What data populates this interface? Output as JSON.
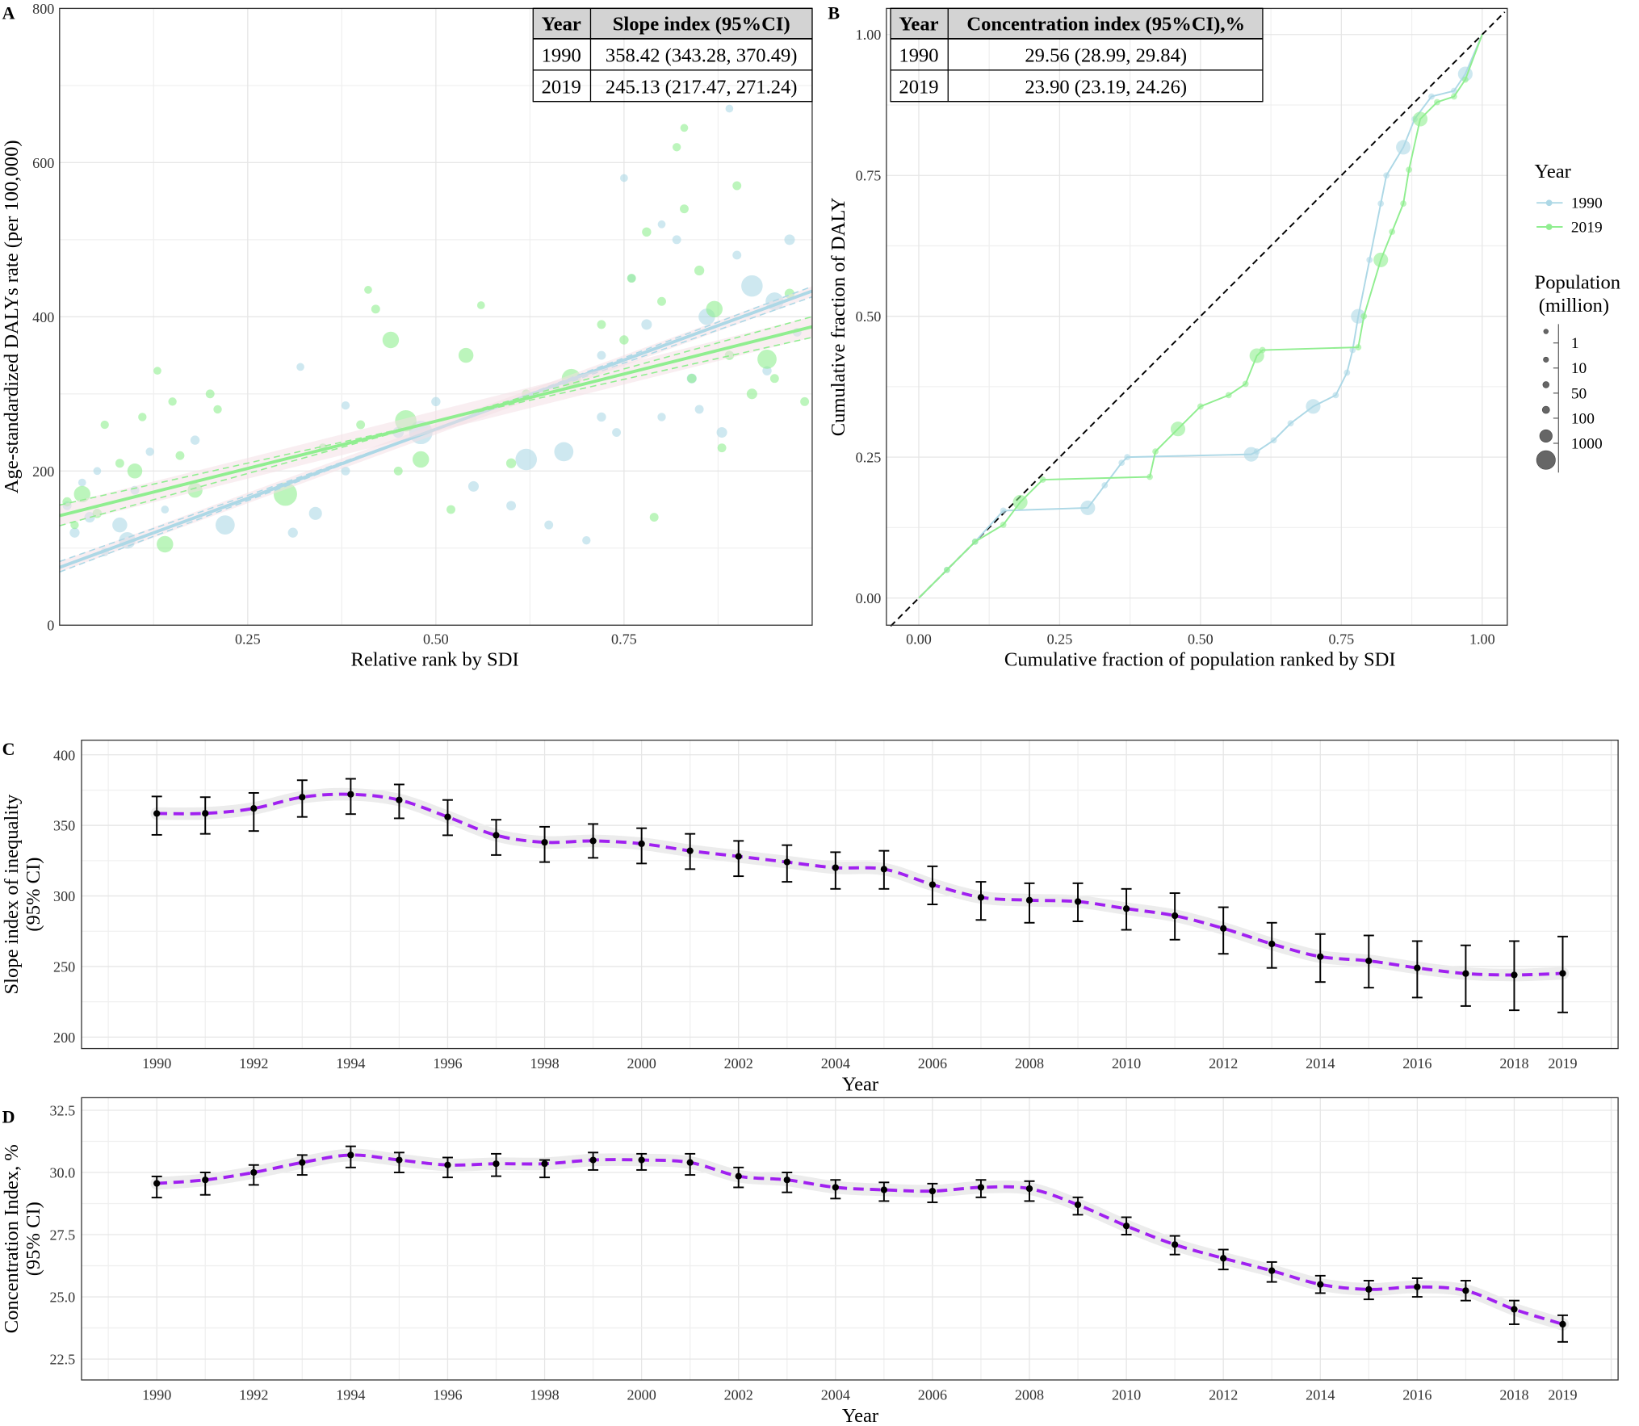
{
  "chart_data": [
    {
      "panel": "A",
      "type": "scatter",
      "xlabel": "Relative rank by SDI",
      "ylabel": "Age-standardized DALYs rate (per 100,000)",
      "xlim": [
        0,
        1
      ],
      "ylim": [
        0,
        800
      ],
      "xticks": [
        "0.25",
        "0.50",
        "0.75"
      ],
      "xtick_values": [
        0.25,
        0.5,
        0.75
      ],
      "yticks": [
        "0",
        "200",
        "400",
        "600",
        "800"
      ],
      "ytick_values": [
        0,
        200,
        400,
        600,
        800
      ],
      "grid": true,
      "table": {
        "headers": [
          "Year",
          "Slope index (95%CI)"
        ],
        "rows": [
          [
            "1990",
            "358.42 (343.28, 370.49)"
          ],
          [
            "2019",
            "245.13 (217.47, 271.24)"
          ]
        ]
      },
      "series": [
        {
          "name": "1990",
          "color": "#add8e6",
          "fit_intercept": 75,
          "fit_slope": 358.42,
          "ci_low_slope": 343.28,
          "ci_high_slope": 370.49,
          "points": [
            [
              0.01,
              155,
              5
            ],
            [
              0.02,
              120,
              8
            ],
            [
              0.03,
              185,
              3
            ],
            [
              0.04,
              140,
              10
            ],
            [
              0.05,
              200,
              3
            ],
            [
              0.06,
              95,
              4
            ],
            [
              0.08,
              130,
              30
            ],
            [
              0.09,
              110,
              40
            ],
            [
              0.1,
              175,
              5
            ],
            [
              0.12,
              225,
              4
            ],
            [
              0.14,
              150,
              3
            ],
            [
              0.18,
              240,
              6
            ],
            [
              0.22,
              130,
              60
            ],
            [
              0.31,
              120,
              8
            ],
            [
              0.32,
              335,
              3
            ],
            [
              0.34,
              145,
              20
            ],
            [
              0.38,
              200,
              5
            ],
            [
              0.38,
              285,
              4
            ],
            [
              0.45,
              250,
              12
            ],
            [
              0.48,
              250,
              100
            ],
            [
              0.5,
              290,
              6
            ],
            [
              0.55,
              180,
              10
            ],
            [
              0.6,
              155,
              7
            ],
            [
              0.62,
              215,
              80
            ],
            [
              0.65,
              130,
              5
            ],
            [
              0.67,
              225,
              60
            ],
            [
              0.7,
              110,
              4
            ],
            [
              0.72,
              270,
              6
            ],
            [
              0.74,
              250,
              5
            ],
            [
              0.75,
              580,
              3
            ],
            [
              0.76,
              450,
              4
            ],
            [
              0.78,
              390,
              10
            ],
            [
              0.8,
              520,
              3
            ],
            [
              0.82,
              500,
              5
            ],
            [
              0.84,
              320,
              8
            ],
            [
              0.86,
              400,
              40
            ],
            [
              0.88,
              250,
              10
            ],
            [
              0.9,
              480,
              5
            ],
            [
              0.92,
              440,
              80
            ],
            [
              0.94,
              330,
              6
            ],
            [
              0.95,
              420,
              50
            ],
            [
              0.97,
              500,
              10
            ],
            [
              0.98,
              380,
              5
            ],
            [
              0.8,
              270,
              4
            ],
            [
              0.85,
              280,
              5
            ],
            [
              0.72,
              350,
              5
            ],
            [
              0.89,
              670,
              3
            ]
          ]
        },
        {
          "name": "2019",
          "color": "#90ee90",
          "fit_intercept": 142,
          "fit_slope": 245.13,
          "ci_low_slope": 217.47,
          "ci_high_slope": 271.24,
          "points": [
            [
              0.01,
              160,
              6
            ],
            [
              0.02,
              130,
              4
            ],
            [
              0.03,
              170,
              40
            ],
            [
              0.05,
              145,
              6
            ],
            [
              0.06,
              260,
              4
            ],
            [
              0.08,
              210,
              5
            ],
            [
              0.1,
              200,
              30
            ],
            [
              0.11,
              270,
              4
            ],
            [
              0.13,
              330,
              3
            ],
            [
              0.14,
              105,
              40
            ],
            [
              0.15,
              290,
              4
            ],
            [
              0.16,
              220,
              5
            ],
            [
              0.18,
              175,
              30
            ],
            [
              0.2,
              300,
              5
            ],
            [
              0.21,
              280,
              4
            ],
            [
              0.3,
              170,
              100
            ],
            [
              0.35,
              230,
              5
            ],
            [
              0.4,
              260,
              5
            ],
            [
              0.41,
              435,
              3
            ],
            [
              0.42,
              410,
              5
            ],
            [
              0.44,
              370,
              40
            ],
            [
              0.45,
              200,
              5
            ],
            [
              0.46,
              265,
              80
            ],
            [
              0.48,
              215,
              40
            ],
            [
              0.52,
              150,
              5
            ],
            [
              0.54,
              350,
              30
            ],
            [
              0.56,
              415,
              3
            ],
            [
              0.6,
              210,
              8
            ],
            [
              0.62,
              300,
              5
            ],
            [
              0.68,
              320,
              60
            ],
            [
              0.72,
              390,
              5
            ],
            [
              0.75,
              370,
              6
            ],
            [
              0.76,
              450,
              5
            ],
            [
              0.78,
              510,
              6
            ],
            [
              0.8,
              420,
              5
            ],
            [
              0.82,
              620,
              4
            ],
            [
              0.83,
              540,
              5
            ],
            [
              0.84,
              320,
              6
            ],
            [
              0.85,
              460,
              8
            ],
            [
              0.87,
              410,
              40
            ],
            [
              0.89,
              350,
              6
            ],
            [
              0.9,
              570,
              5
            ],
            [
              0.92,
              300,
              10
            ],
            [
              0.94,
              345,
              60
            ],
            [
              0.95,
              320,
              5
            ],
            [
              0.97,
              430,
              8
            ],
            [
              0.99,
              290,
              5
            ],
            [
              0.79,
              140,
              5
            ],
            [
              0.88,
              230,
              5
            ],
            [
              0.83,
              645,
              3
            ]
          ]
        }
      ]
    },
    {
      "panel": "B",
      "type": "line",
      "xlabel": "Cumulative fraction of population ranked by SDI",
      "ylabel": "Cumulative fraction of DALY",
      "xlim": [
        0,
        1
      ],
      "ylim": [
        0,
        1
      ],
      "xticks": [
        "0.00",
        "0.25",
        "0.50",
        "0.75",
        "1.00"
      ],
      "xtick_values": [
        0,
        0.25,
        0.5,
        0.75,
        1
      ],
      "yticks": [
        "0.00",
        "0.25",
        "0.50",
        "0.75",
        "1.00"
      ],
      "ytick_values": [
        0,
        0.25,
        0.5,
        0.75,
        1
      ],
      "grid": true,
      "table": {
        "headers": [
          "Year",
          "Concentration index (95%CI),%"
        ],
        "rows": [
          [
            "1990",
            "29.56 (28.99, 29.84)"
          ],
          [
            "2019",
            "23.90 (23.19, 24.26)"
          ]
        ]
      },
      "series": [
        {
          "name": "1990",
          "color": "#add8e6",
          "points": [
            [
              0,
              0
            ],
            [
              0.05,
              0.05
            ],
            [
              0.1,
              0.1
            ],
            [
              0.15,
              0.155
            ],
            [
              0.3,
              0.16
            ],
            [
              0.33,
              0.2
            ],
            [
              0.36,
              0.24
            ],
            [
              0.37,
              0.25
            ],
            [
              0.59,
              0.255
            ],
            [
              0.6,
              0.26
            ],
            [
              0.63,
              0.28
            ],
            [
              0.66,
              0.31
            ],
            [
              0.7,
              0.34
            ],
            [
              0.74,
              0.36
            ],
            [
              0.76,
              0.4
            ],
            [
              0.77,
              0.44
            ],
            [
              0.78,
              0.5
            ],
            [
              0.8,
              0.6
            ],
            [
              0.82,
              0.7
            ],
            [
              0.83,
              0.75
            ],
            [
              0.86,
              0.8
            ],
            [
              0.88,
              0.85
            ],
            [
              0.91,
              0.89
            ],
            [
              0.95,
              0.9
            ],
            [
              0.97,
              0.93
            ],
            [
              1,
              1
            ]
          ]
        },
        {
          "name": "2019",
          "color": "#90ee90",
          "points": [
            [
              0,
              0
            ],
            [
              0.05,
              0.05
            ],
            [
              0.1,
              0.1
            ],
            [
              0.15,
              0.13
            ],
            [
              0.18,
              0.17
            ],
            [
              0.22,
              0.21
            ],
            [
              0.41,
              0.215
            ],
            [
              0.42,
              0.26
            ],
            [
              0.46,
              0.3
            ],
            [
              0.5,
              0.34
            ],
            [
              0.55,
              0.36
            ],
            [
              0.58,
              0.38
            ],
            [
              0.6,
              0.43
            ],
            [
              0.61,
              0.44
            ],
            [
              0.78,
              0.445
            ],
            [
              0.79,
              0.5
            ],
            [
              0.82,
              0.6
            ],
            [
              0.84,
              0.65
            ],
            [
              0.86,
              0.7
            ],
            [
              0.87,
              0.76
            ],
            [
              0.89,
              0.85
            ],
            [
              0.92,
              0.88
            ],
            [
              0.95,
              0.89
            ],
            [
              0.97,
              0.92
            ],
            [
              1,
              1
            ]
          ]
        }
      ]
    },
    {
      "panel": "C",
      "type": "line",
      "xlabel": "Year",
      "ylabel": "Slope index of inequality (95% CI)",
      "ylim": [
        195,
        405
      ],
      "xticks": [
        "1990",
        "1992",
        "1994",
        "1996",
        "1998",
        "2000",
        "2002",
        "2004",
        "2006",
        "2008",
        "2010",
        "2012",
        "2014",
        "2016",
        "2018",
        "2019"
      ],
      "yticks": [
        "200",
        "250",
        "300",
        "350",
        "400"
      ],
      "ytick_values": [
        200,
        250,
        300,
        350,
        400
      ],
      "color": "#a020f0",
      "x": [
        1990,
        1991,
        1992,
        1993,
        1994,
        1995,
        1996,
        1997,
        1998,
        1999,
        2000,
        2001,
        2002,
        2003,
        2004,
        2005,
        2006,
        2007,
        2008,
        2009,
        2010,
        2011,
        2012,
        2013,
        2014,
        2015,
        2016,
        2017,
        2018,
        2019
      ],
      "values": [
        358.42,
        358.5,
        362,
        370,
        372,
        368,
        356,
        343,
        338,
        339,
        337,
        332,
        328,
        324,
        320,
        319,
        308,
        299,
        297,
        296,
        291,
        286,
        277,
        266,
        257,
        254,
        249,
        245,
        244,
        245.13
      ],
      "lower": [
        343.28,
        344,
        346,
        356,
        358,
        355,
        343,
        329,
        324,
        327,
        323,
        319,
        314,
        310,
        305,
        305,
        294,
        283,
        281,
        282,
        276,
        269,
        259,
        249,
        239,
        235,
        228,
        222,
        219,
        217.47
      ],
      "upper": [
        370.49,
        370,
        373,
        382,
        383,
        379,
        368,
        354,
        349,
        351,
        348,
        344,
        339,
        336,
        331,
        332,
        321,
        310,
        309,
        309,
        305,
        302,
        292,
        281,
        273,
        272,
        268,
        265,
        268,
        271.24
      ]
    },
    {
      "panel": "D",
      "type": "line",
      "xlabel": "Year",
      "ylabel": "Concentration Index, % (95% CI)",
      "ylim": [
        22,
        32.5
      ],
      "xticks": [
        "1990",
        "1992",
        "1994",
        "1996",
        "1998",
        "2000",
        "2002",
        "2004",
        "2006",
        "2008",
        "2010",
        "2012",
        "2014",
        "2016",
        "2018",
        "2019"
      ],
      "yticks": [
        "22.5",
        "25.0",
        "27.5",
        "30.0",
        "32.5"
      ],
      "ytick_values": [
        22.5,
        25,
        27.5,
        30,
        32.5
      ],
      "color": "#a020f0",
      "x": [
        1990,
        1991,
        1992,
        1993,
        1994,
        1995,
        1996,
        1997,
        1998,
        1999,
        2000,
        2001,
        2002,
        2003,
        2004,
        2005,
        2006,
        2007,
        2008,
        2009,
        2010,
        2011,
        2012,
        2013,
        2014,
        2015,
        2016,
        2017,
        2018,
        2019
      ],
      "values": [
        29.56,
        29.7,
        30.0,
        30.4,
        30.7,
        30.5,
        30.3,
        30.35,
        30.35,
        30.5,
        30.5,
        30.4,
        29.85,
        29.7,
        29.4,
        29.3,
        29.25,
        29.4,
        29.35,
        28.7,
        27.85,
        27.1,
        26.55,
        26.05,
        25.5,
        25.3,
        25.4,
        25.25,
        24.5,
        23.9
      ],
      "lower": [
        28.99,
        29.1,
        29.5,
        29.9,
        30.2,
        30.0,
        29.8,
        29.85,
        29.8,
        30.1,
        30.1,
        29.9,
        29.4,
        29.2,
        28.95,
        28.85,
        28.8,
        29.0,
        28.85,
        28.3,
        27.5,
        26.7,
        26.1,
        25.6,
        25.15,
        24.9,
        25.0,
        24.85,
        23.9,
        23.19
      ],
      "upper": [
        29.84,
        30.0,
        30.3,
        30.7,
        31.05,
        30.8,
        30.6,
        30.75,
        30.5,
        30.8,
        30.75,
        30.75,
        30.2,
        30.0,
        29.7,
        29.6,
        29.55,
        29.7,
        29.65,
        29.0,
        28.2,
        27.45,
        26.9,
        26.4,
        25.85,
        25.65,
        25.75,
        25.65,
        24.85,
        24.26
      ]
    }
  ],
  "panel_labels": [
    "A",
    "B",
    "C",
    "D"
  ],
  "legend": {
    "year_title": "Year",
    "years": [
      {
        "label": "1990",
        "color": "#add8e6"
      },
      {
        "label": "2019",
        "color": "#90ee90"
      }
    ],
    "pop_title_1": "Population",
    "pop_title_2": "(million)",
    "pop_sizes": [
      "1",
      "10",
      "50",
      "100",
      "1000"
    ]
  }
}
